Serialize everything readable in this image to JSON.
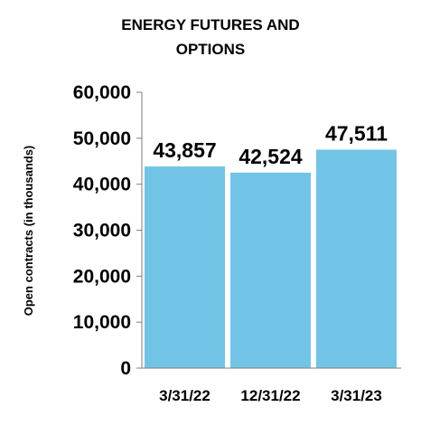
{
  "chart_data": {
    "type": "bar",
    "title_line1": "ENERGY FUTURES AND",
    "title_line2": "OPTIONS",
    "ylabel": "Open contracts (in thousands)",
    "xlabel": "",
    "categories": [
      "3/31/22",
      "12/31/22",
      "3/31/23"
    ],
    "values": [
      43857,
      42524,
      47511
    ],
    "value_labels": [
      "43,857",
      "42,524",
      "47,511"
    ],
    "ylim": [
      0,
      60000
    ],
    "yticks": [
      0,
      10000,
      20000,
      30000,
      40000,
      50000,
      60000
    ],
    "ytick_labels": [
      "0",
      "10,000",
      "20,000",
      "30,000",
      "40,000",
      "50,000",
      "60,000"
    ],
    "bar_color": "#72C4E6",
    "grid": false,
    "legend": "none"
  }
}
